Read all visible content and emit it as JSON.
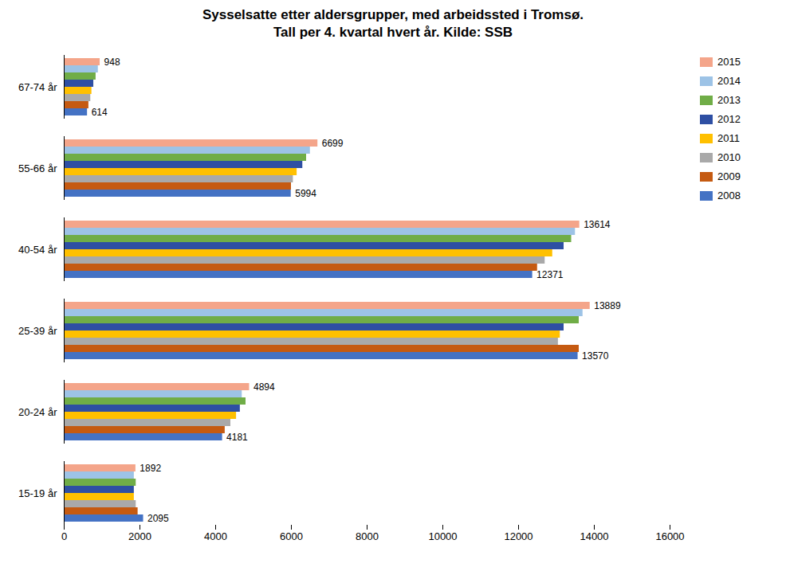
{
  "chart_data": {
    "type": "bar",
    "orientation": "horizontal",
    "title": "Sysselsatte etter aldersgrupper, med arbeidssted i Tromsø.\nTall per 4. kvartal hvert år. Kilde: SSB",
    "categories": [
      "15-19 år",
      "20-24 år",
      "25-39 år",
      "40-54 år",
      "55-66 år",
      "67-74 år"
    ],
    "series": [
      {
        "name": "2015",
        "color": "#F4A58A",
        "values": [
          1892,
          4894,
          13889,
          13614,
          6699,
          948
        ],
        "data_labels": true
      },
      {
        "name": "2014",
        "color": "#9DC3E6",
        "values": [
          1850,
          4700,
          13700,
          13500,
          6500,
          900
        ]
      },
      {
        "name": "2013",
        "color": "#70AD47",
        "values": [
          1900,
          4800,
          13600,
          13400,
          6400,
          840
        ]
      },
      {
        "name": "2012",
        "color": "#2E4FA3",
        "values": [
          1850,
          4650,
          13200,
          13200,
          6300,
          780
        ]
      },
      {
        "name": "2011",
        "color": "#FFC000",
        "values": [
          1850,
          4550,
          13100,
          12900,
          6150,
          730
        ]
      },
      {
        "name": "2010",
        "color": "#A9A9A9",
        "values": [
          1900,
          4400,
          13050,
          12700,
          6050,
          700
        ]
      },
      {
        "name": "2009",
        "color": "#C55A11",
        "values": [
          1950,
          4250,
          13600,
          12500,
          6000,
          650
        ]
      },
      {
        "name": "2008",
        "color": "#4472C4",
        "values": [
          2095,
          4181,
          13570,
          12371,
          5994,
          614
        ],
        "data_labels": true
      }
    ],
    "xlim": [
      0,
      16000
    ],
    "xticks": [
      0,
      2000,
      4000,
      6000,
      8000,
      10000,
      12000,
      14000,
      16000
    ],
    "grid": false,
    "legend": "upper right"
  }
}
